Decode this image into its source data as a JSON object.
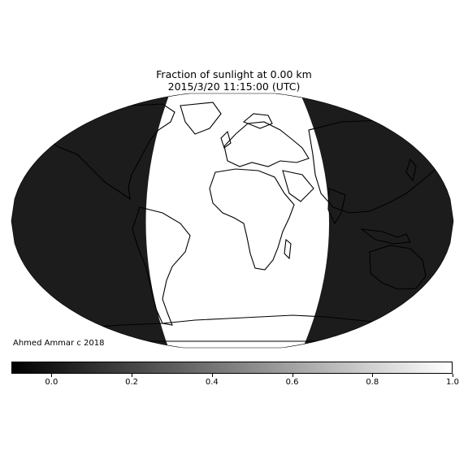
{
  "title": {
    "line1": "Fraction of sunlight at 0.00 km",
    "line2": "2015/3/20 11:15:00 (UTC)"
  },
  "credit": "Ahmed Ammar c 2018",
  "colorbar": {
    "min": -0.1,
    "max": 1.0,
    "ticks": [
      "0.0",
      "0.2",
      "0.4",
      "0.6",
      "0.8",
      "1.0"
    ],
    "tick_values": [
      0.0,
      0.2,
      0.4,
      0.6,
      0.8,
      1.0
    ],
    "colors": [
      "#000000",
      "#ffffff"
    ]
  },
  "map": {
    "projection": "robinson",
    "night_color": "#1c1c1c",
    "day_color": "#ffffff",
    "coastline_color": "#000000",
    "subsolar_longitude": -11.25,
    "subsolar_latitude": 0.0
  }
}
